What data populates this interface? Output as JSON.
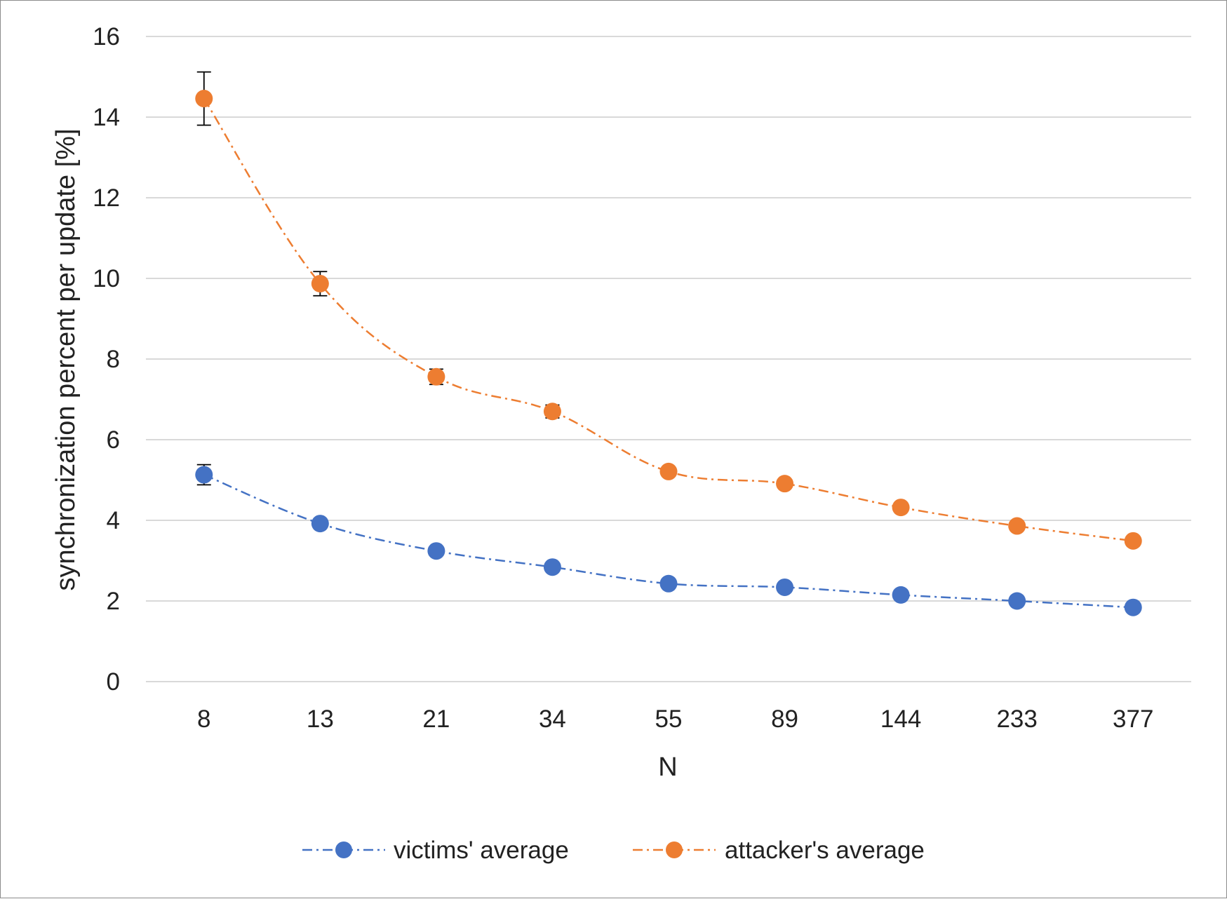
{
  "chart_data": {
    "type": "line",
    "title": "",
    "xlabel": "N",
    "ylabel": "synchronization percent per update [%]",
    "categories": [
      "8",
      "13",
      "21",
      "34",
      "55",
      "89",
      "144",
      "233",
      "377"
    ],
    "ylim": [
      0,
      16
    ],
    "yticks": [
      0,
      2,
      4,
      6,
      8,
      10,
      12,
      14,
      16
    ],
    "grid": "horizontal",
    "legend_position": "bottom",
    "series": [
      {
        "name": "victims' average",
        "color": "#4472C4",
        "line_style": "dash-dot",
        "marker": "circle",
        "values": [
          5.13,
          3.92,
          3.24,
          2.84,
          2.43,
          2.34,
          2.15,
          2.0,
          1.84
        ],
        "errors": [
          0.25,
          0.08,
          0.06,
          0.05,
          0.04,
          0.04,
          0.04,
          0.03,
          0.03
        ]
      },
      {
        "name": "attacker's average",
        "color": "#ED7D31",
        "line_style": "dash-dot",
        "marker": "circle",
        "values": [
          14.46,
          9.87,
          7.56,
          6.7,
          5.21,
          4.91,
          4.32,
          3.86,
          3.49
        ],
        "errors": [
          0.66,
          0.3,
          0.19,
          0.16,
          0.05,
          0.05,
          0.05,
          0.05,
          0.05
        ]
      }
    ]
  }
}
